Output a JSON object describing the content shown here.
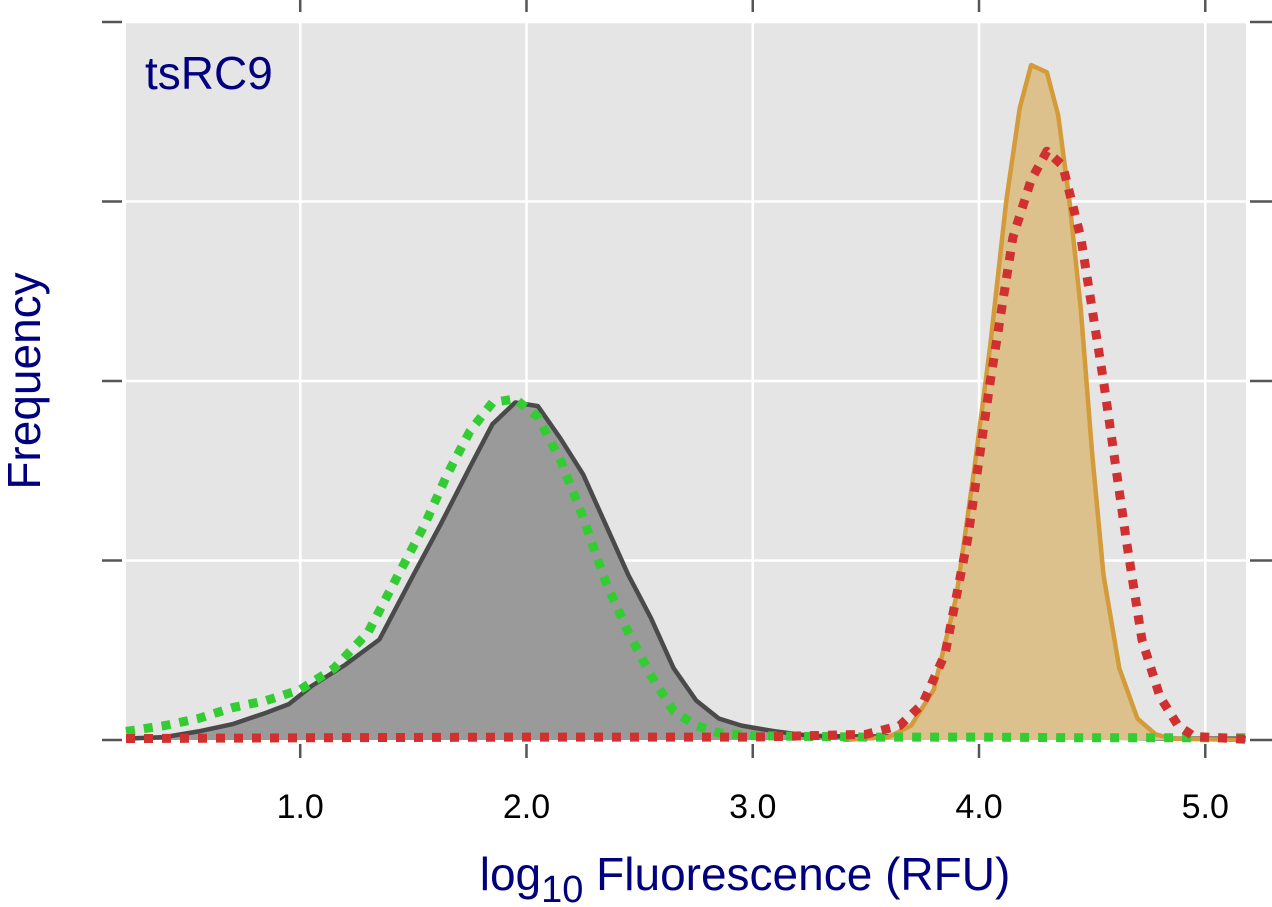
{
  "chart_data": {
    "type": "area",
    "panel_label": "tsRC9",
    "xlabel_main": "log",
    "xlabel_sub": "10",
    "xlabel_rest": " Fluorescence (RFU)",
    "ylabel": "Frequency",
    "xlim": [
      0.23,
      5.18
    ],
    "ylim": [
      0,
      1.0
    ],
    "x_ticks": [
      1.0,
      2.0,
      3.0,
      4.0,
      5.0
    ],
    "x_tick_labels": [
      "1.0",
      "2.0",
      "3.0",
      "4.0",
      "5.0"
    ],
    "y_ticks": [
      0,
      0.25,
      0.5,
      0.75,
      1.0
    ],
    "grid": true,
    "colors": {
      "panel_bg": "#e5e5e5",
      "grid": "#ffffff",
      "gray_fill": "#9a9a9a",
      "gray_line": "#4a4a4a",
      "orange_fill": "#dcc18c",
      "orange_line": "#d39b3a",
      "green": "#33cc33",
      "red": "#d03030",
      "axis_text": "#00007f"
    },
    "series": [
      {
        "key": "gray_filled",
        "style": "filled-solid",
        "points": [
          [
            0.23,
            0.002
          ],
          [
            0.4,
            0.004
          ],
          [
            0.55,
            0.012
          ],
          [
            0.7,
            0.022
          ],
          [
            0.85,
            0.038
          ],
          [
            0.95,
            0.05
          ],
          [
            1.05,
            0.075
          ],
          [
            1.2,
            0.105
          ],
          [
            1.35,
            0.14
          ],
          [
            1.5,
            0.23
          ],
          [
            1.62,
            0.3
          ],
          [
            1.75,
            0.38
          ],
          [
            1.85,
            0.44
          ],
          [
            1.95,
            0.47
          ],
          [
            2.05,
            0.465
          ],
          [
            2.15,
            0.42
          ],
          [
            2.25,
            0.37
          ],
          [
            2.35,
            0.3
          ],
          [
            2.45,
            0.23
          ],
          [
            2.55,
            0.17
          ],
          [
            2.65,
            0.1
          ],
          [
            2.75,
            0.055
          ],
          [
            2.85,
            0.03
          ],
          [
            2.95,
            0.02
          ],
          [
            3.1,
            0.012
          ],
          [
            3.25,
            0.006
          ],
          [
            3.4,
            0.005
          ],
          [
            3.6,
            0.005
          ],
          [
            3.8,
            0.005
          ],
          [
            4.0,
            0.004
          ],
          [
            4.3,
            0.004
          ],
          [
            4.6,
            0.003
          ],
          [
            4.9,
            0.002
          ],
          [
            5.18,
            0.002
          ]
        ]
      },
      {
        "key": "orange_filled",
        "style": "filled-solid",
        "points": [
          [
            3.4,
            0.0
          ],
          [
            3.6,
            0.004
          ],
          [
            3.7,
            0.02
          ],
          [
            3.8,
            0.07
          ],
          [
            3.9,
            0.2
          ],
          [
            3.98,
            0.38
          ],
          [
            4.05,
            0.55
          ],
          [
            4.12,
            0.75
          ],
          [
            4.18,
            0.88
          ],
          [
            4.23,
            0.94
          ],
          [
            4.3,
            0.93
          ],
          [
            4.35,
            0.87
          ],
          [
            4.4,
            0.75
          ],
          [
            4.45,
            0.6
          ],
          [
            4.5,
            0.4
          ],
          [
            4.55,
            0.23
          ],
          [
            4.62,
            0.1
          ],
          [
            4.7,
            0.03
          ],
          [
            4.78,
            0.008
          ],
          [
            4.85,
            0.002
          ],
          [
            5.18,
            0.0
          ]
        ]
      },
      {
        "key": "green_dotted",
        "style": "dotted",
        "points": [
          [
            0.23,
            0.012
          ],
          [
            0.4,
            0.02
          ],
          [
            0.55,
            0.03
          ],
          [
            0.7,
            0.045
          ],
          [
            0.85,
            0.055
          ],
          [
            1.0,
            0.07
          ],
          [
            1.15,
            0.1
          ],
          [
            1.3,
            0.15
          ],
          [
            1.45,
            0.24
          ],
          [
            1.55,
            0.3
          ],
          [
            1.65,
            0.37
          ],
          [
            1.75,
            0.43
          ],
          [
            1.85,
            0.47
          ],
          [
            1.95,
            0.475
          ],
          [
            2.05,
            0.45
          ],
          [
            2.15,
            0.39
          ],
          [
            2.25,
            0.31
          ],
          [
            2.35,
            0.22
          ],
          [
            2.45,
            0.15
          ],
          [
            2.55,
            0.09
          ],
          [
            2.65,
            0.04
          ],
          [
            2.75,
            0.02
          ],
          [
            2.85,
            0.01
          ],
          [
            3.0,
            0.006
          ],
          [
            3.5,
            0.004
          ],
          [
            4.0,
            0.004
          ],
          [
            4.5,
            0.003
          ],
          [
            5.18,
            0.003
          ]
        ]
      },
      {
        "key": "red_dotted",
        "style": "dotted",
        "points": [
          [
            0.23,
            0.002
          ],
          [
            1.0,
            0.003
          ],
          [
            2.0,
            0.004
          ],
          [
            3.0,
            0.004
          ],
          [
            3.5,
            0.008
          ],
          [
            3.65,
            0.02
          ],
          [
            3.75,
            0.05
          ],
          [
            3.85,
            0.12
          ],
          [
            3.95,
            0.28
          ],
          [
            4.05,
            0.5
          ],
          [
            4.15,
            0.7
          ],
          [
            4.23,
            0.78
          ],
          [
            4.3,
            0.82
          ],
          [
            4.37,
            0.8
          ],
          [
            4.45,
            0.7
          ],
          [
            4.55,
            0.5
          ],
          [
            4.65,
            0.28
          ],
          [
            4.72,
            0.14
          ],
          [
            4.8,
            0.06
          ],
          [
            4.88,
            0.02
          ],
          [
            4.95,
            0.005
          ],
          [
            5.18,
            0.001
          ]
        ]
      }
    ]
  }
}
